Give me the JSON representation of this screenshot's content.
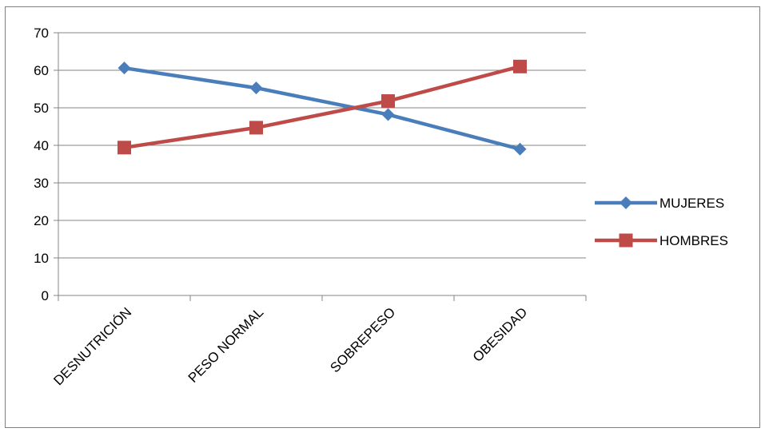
{
  "chart_data": {
    "type": "line",
    "categories": [
      "DESNUTRICIÓN",
      "PESO NORMAL",
      "SOBREPESO",
      "OBESIDAD"
    ],
    "series": [
      {
        "name": "MUJERES",
        "values": [
          60.6,
          55.3,
          48.2,
          39.0
        ],
        "color": "#4a7ebb",
        "marker": "diamond"
      },
      {
        "name": "HOMBRES",
        "values": [
          39.4,
          44.7,
          51.8,
          61.0
        ],
        "color": "#be4b48",
        "marker": "square"
      }
    ],
    "yticks": [
      "0",
      "10",
      "20",
      "30",
      "40",
      "50",
      "60",
      "70"
    ],
    "ylim": [
      0,
      70
    ],
    "grid": true,
    "legend_position": "right",
    "title": "",
    "xlabel": "",
    "ylabel": ""
  }
}
